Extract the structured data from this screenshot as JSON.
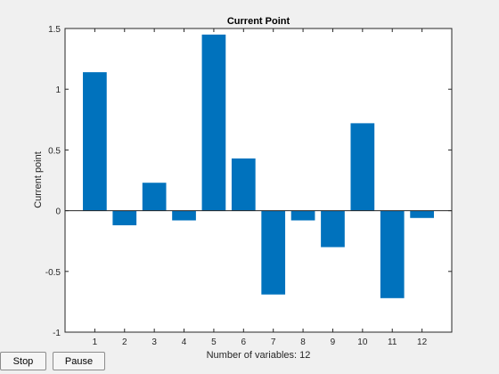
{
  "controls": {
    "stop_label": "Stop",
    "pause_label": "Pause"
  },
  "chart_data": {
    "type": "bar",
    "title": "Current Point",
    "xlabel": "Number of variables: 12",
    "ylabel": "Current point",
    "categories": [
      "1",
      "2",
      "3",
      "4",
      "5",
      "6",
      "7",
      "8",
      "9",
      "10",
      "11",
      "12"
    ],
    "values": [
      1.14,
      -0.12,
      0.23,
      -0.08,
      1.45,
      0.43,
      -0.69,
      -0.08,
      -0.3,
      0.72,
      -0.72,
      -0.06
    ],
    "ylim": [
      -1,
      1.5
    ],
    "yticks": [
      -1,
      -0.5,
      0,
      0.5,
      1,
      1.5
    ],
    "ytick_labels": [
      "-1",
      "-0.5",
      "0",
      "0.5",
      "1",
      "1.5"
    ],
    "xlim": [
      0,
      13
    ],
    "bar_color": "#0072bd",
    "grid": false
  }
}
